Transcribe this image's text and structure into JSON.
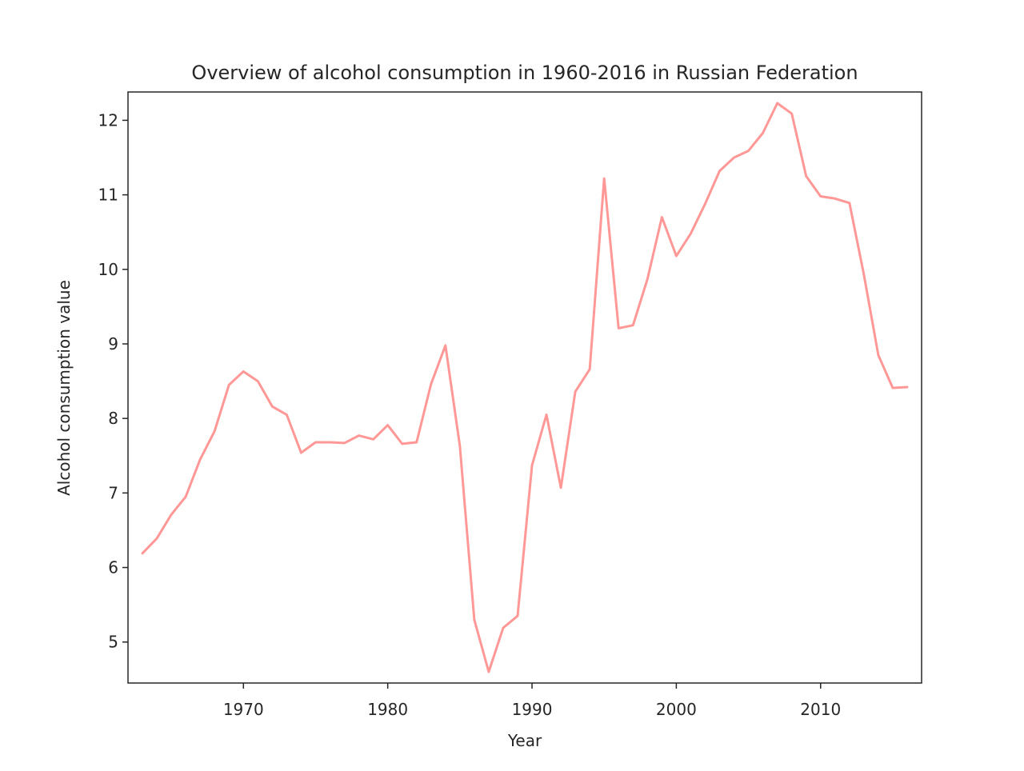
{
  "chart_data": {
    "type": "line",
    "title": "Overview of alcohol consumption in 1960-2016 in Russian Federation",
    "xlabel": "Year",
    "ylabel": "Alcohol consumption value",
    "xlim": [
      1962,
      2017
    ],
    "ylim": [
      4.45,
      12.38
    ],
    "xticks": [
      1970,
      1980,
      1990,
      2000,
      2010
    ],
    "yticks": [
      5,
      6,
      7,
      8,
      9,
      10,
      11,
      12
    ],
    "grid": false,
    "line_color": "#ff9896",
    "x": [
      1963,
      1964,
      1965,
      1966,
      1967,
      1968,
      1969,
      1970,
      1971,
      1972,
      1973,
      1974,
      1975,
      1976,
      1977,
      1978,
      1979,
      1980,
      1981,
      1982,
      1983,
      1984,
      1985,
      1986,
      1987,
      1988,
      1989,
      1990,
      1991,
      1992,
      1993,
      1994,
      1995,
      1996,
      1997,
      1998,
      1999,
      2000,
      2001,
      2002,
      2003,
      2004,
      2005,
      2006,
      2007,
      2008,
      2009,
      2010,
      2011,
      2012,
      2013,
      2014,
      2015,
      2016
    ],
    "series": [
      {
        "values": [
          6.19,
          6.39,
          6.71,
          6.95,
          7.45,
          7.83,
          8.45,
          8.63,
          8.5,
          8.16,
          8.05,
          7.54,
          7.68,
          7.68,
          7.67,
          7.77,
          7.72,
          7.91,
          7.66,
          7.68,
          8.46,
          8.98,
          7.63,
          5.3,
          4.6,
          5.19,
          5.35,
          7.37,
          8.05,
          7.07,
          8.36,
          8.66,
          11.22,
          9.21,
          9.25,
          9.87,
          10.7,
          10.18,
          10.48,
          10.88,
          11.32,
          11.5,
          11.59,
          11.83,
          12.23,
          12.09,
          11.25,
          10.98,
          10.95,
          10.89,
          9.93,
          8.85,
          8.41,
          8.42
        ]
      }
    ]
  }
}
